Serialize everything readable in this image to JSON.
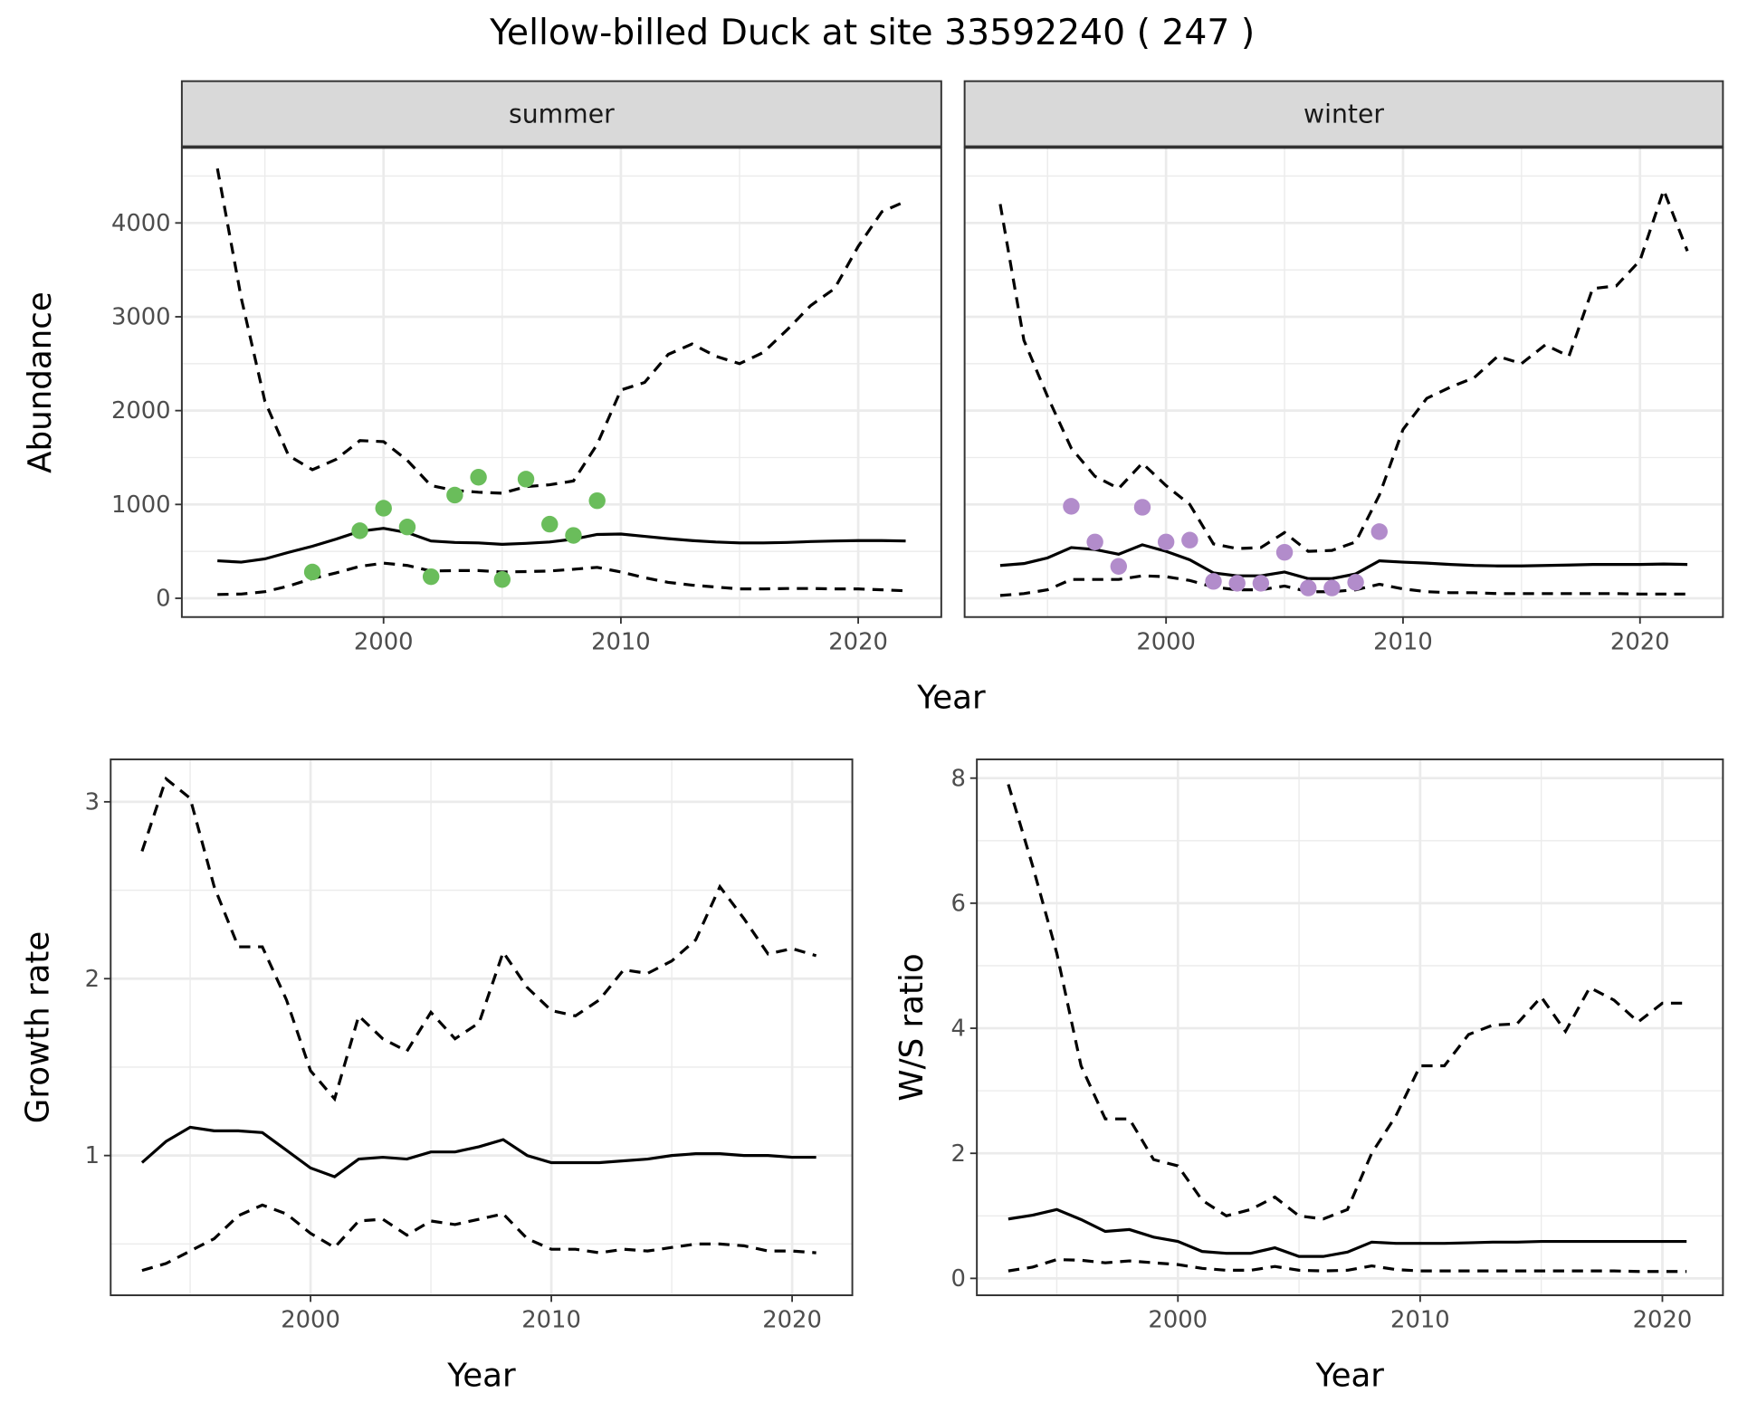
{
  "title": "Yellow-billed Duck at site 33592240 ( 247 )",
  "colors": {
    "summer_points": "#6abd5b",
    "winter_points": "#b28ccb",
    "strip": "#d9d9d9"
  },
  "chart_data": [
    {
      "id": "summer",
      "type": "line",
      "facet": "summer",
      "xlabel": "Year",
      "ylabel": "Abundance",
      "xlim": [
        1991.5,
        2023.5
      ],
      "ylim": [
        -200,
        4800
      ],
      "xticks": [
        2000,
        2010,
        2020
      ],
      "yticks": [
        0,
        1000,
        2000,
        3000,
        4000
      ],
      "grid": true,
      "x": [
        1993,
        1994,
        1995,
        1996,
        1997,
        1998,
        1999,
        2000,
        2001,
        2002,
        2003,
        2004,
        2005,
        2006,
        2007,
        2008,
        2009,
        2010,
        2011,
        2012,
        2013,
        2014,
        2015,
        2016,
        2017,
        2018,
        2019,
        2020,
        2021,
        2022
      ],
      "series": [
        {
          "name": "mean",
          "style": "solid",
          "values": [
            400,
            385,
            420,
            490,
            555,
            630,
            715,
            745,
            700,
            610,
            595,
            590,
            575,
            585,
            600,
            630,
            680,
            685,
            660,
            635,
            615,
            600,
            590,
            590,
            595,
            605,
            610,
            615,
            615,
            610
          ]
        },
        {
          "name": "upper",
          "style": "dashed",
          "values": [
            4580,
            3200,
            2100,
            1520,
            1370,
            1480,
            1680,
            1670,
            1470,
            1200,
            1150,
            1130,
            1120,
            1190,
            1210,
            1250,
            1640,
            2220,
            2300,
            2600,
            2710,
            2580,
            2500,
            2620,
            2860,
            3120,
            3300,
            3750,
            4120,
            4230
          ]
        },
        {
          "name": "lower",
          "style": "dashed",
          "values": [
            40,
            45,
            70,
            130,
            210,
            270,
            340,
            375,
            350,
            290,
            295,
            295,
            280,
            285,
            290,
            310,
            330,
            280,
            220,
            170,
            140,
            120,
            100,
            100,
            105,
            105,
            100,
            100,
            90,
            80
          ]
        }
      ],
      "points": {
        "x": [
          1997,
          1999,
          2000,
          2001,
          2002,
          2003,
          2004,
          2005,
          2006,
          2007,
          2008,
          2009
        ],
        "y": [
          280,
          720,
          960,
          760,
          230,
          1100,
          1290,
          200,
          1270,
          790,
          670,
          1040
        ]
      }
    },
    {
      "id": "winter",
      "type": "line",
      "facet": "winter",
      "xlabel": "Year",
      "ylabel": "",
      "xlim": [
        1991.5,
        2023.5
      ],
      "ylim": [
        -200,
        4800
      ],
      "xticks": [
        2000,
        2010,
        2020
      ],
      "yticks": [
        0,
        1000,
        2000,
        3000,
        4000
      ],
      "grid": true,
      "x": [
        1993,
        1994,
        1995,
        1996,
        1997,
        1998,
        1999,
        2000,
        2001,
        2002,
        2003,
        2004,
        2005,
        2006,
        2007,
        2008,
        2009,
        2010,
        2011,
        2012,
        2013,
        2014,
        2015,
        2016,
        2017,
        2018,
        2019,
        2020,
        2021,
        2022
      ],
      "series": [
        {
          "name": "mean",
          "style": "solid",
          "values": [
            350,
            370,
            430,
            540,
            520,
            470,
            570,
            500,
            410,
            270,
            240,
            240,
            280,
            210,
            210,
            260,
            400,
            385,
            375,
            360,
            350,
            345,
            345,
            350,
            355,
            360,
            360,
            360,
            365,
            360
          ]
        },
        {
          "name": "upper",
          "style": "dashed",
          "values": [
            4200,
            2750,
            2150,
            1600,
            1300,
            1170,
            1440,
            1200,
            1000,
            580,
            530,
            540,
            700,
            500,
            510,
            600,
            1100,
            1800,
            2130,
            2250,
            2350,
            2580,
            2500,
            2700,
            2580,
            3300,
            3330,
            3600,
            4350,
            3700
          ]
        },
        {
          "name": "lower",
          "style": "dashed",
          "values": [
            30,
            50,
            90,
            200,
            200,
            200,
            240,
            230,
            190,
            120,
            90,
            90,
            130,
            70,
            70,
            90,
            150,
            100,
            70,
            60,
            60,
            50,
            50,
            50,
            50,
            50,
            50,
            45,
            45,
            45
          ]
        }
      ],
      "points": {
        "x": [
          1996,
          1997,
          1998,
          1999,
          2000,
          2001,
          2002,
          2003,
          2004,
          2005,
          2006,
          2007,
          2008,
          2009
        ],
        "y": [
          980,
          600,
          340,
          970,
          600,
          620,
          180,
          160,
          160,
          490,
          110,
          110,
          170,
          710
        ]
      }
    },
    {
      "id": "growth",
      "type": "line",
      "xlabel": "Year",
      "ylabel": "Growth rate",
      "xlim": [
        1991.7,
        2022.5
      ],
      "ylim": [
        0.21,
        3.24
      ],
      "xticks": [
        2000,
        2010,
        2020
      ],
      "yticks": [
        1,
        2,
        3
      ],
      "grid": true,
      "x": [
        1993,
        1994,
        1995,
        1996,
        1997,
        1998,
        1999,
        2000,
        2001,
        2002,
        2003,
        2004,
        2005,
        2006,
        2007,
        2008,
        2009,
        2010,
        2011,
        2012,
        2013,
        2014,
        2015,
        2016,
        2017,
        2018,
        2019,
        2020,
        2021
      ],
      "series": [
        {
          "name": "mean",
          "style": "solid",
          "values": [
            0.96,
            1.08,
            1.16,
            1.14,
            1.14,
            1.13,
            1.03,
            0.93,
            0.88,
            0.98,
            0.99,
            0.98,
            1.02,
            1.02,
            1.05,
            1.09,
            1.0,
            0.96,
            0.96,
            0.96,
            0.97,
            0.98,
            1.0,
            1.01,
            1.01,
            1.0,
            1.0,
            0.99,
            0.99
          ]
        },
        {
          "name": "upper",
          "style": "dashed",
          "values": [
            2.72,
            3.13,
            3.02,
            2.52,
            2.18,
            2.18,
            1.88,
            1.48,
            1.32,
            1.79,
            1.66,
            1.59,
            1.81,
            1.66,
            1.75,
            2.15,
            1.95,
            1.82,
            1.79,
            1.88,
            2.05,
            2.03,
            2.1,
            2.22,
            2.52,
            2.34,
            2.14,
            2.17,
            2.13
          ]
        },
        {
          "name": "lower",
          "style": "dashed",
          "values": [
            0.35,
            0.39,
            0.46,
            0.53,
            0.66,
            0.72,
            0.67,
            0.56,
            0.48,
            0.63,
            0.64,
            0.55,
            0.63,
            0.61,
            0.64,
            0.67,
            0.53,
            0.47,
            0.47,
            0.45,
            0.47,
            0.46,
            0.48,
            0.5,
            0.5,
            0.49,
            0.46,
            0.46,
            0.45
          ]
        }
      ]
    },
    {
      "id": "ws",
      "type": "line",
      "xlabel": "Year",
      "ylabel": "W/S ratio",
      "xlim": [
        1991.7,
        2022.5
      ],
      "ylim": [
        -0.27,
        8.3
      ],
      "xticks": [
        2000,
        2010,
        2020
      ],
      "yticks": [
        0,
        2,
        4,
        6,
        8
      ],
      "grid": true,
      "x": [
        1993,
        1994,
        1995,
        1996,
        1997,
        1998,
        1999,
        2000,
        2001,
        2002,
        2003,
        2004,
        2005,
        2006,
        2007,
        2008,
        2009,
        2010,
        2011,
        2012,
        2013,
        2014,
        2015,
        2016,
        2017,
        2018,
        2019,
        2020,
        2021
      ],
      "series": [
        {
          "name": "mean",
          "style": "solid",
          "values": [
            0.95,
            1.01,
            1.1,
            0.94,
            0.75,
            0.78,
            0.66,
            0.59,
            0.43,
            0.4,
            0.4,
            0.49,
            0.35,
            0.35,
            0.42,
            0.58,
            0.56,
            0.56,
            0.56,
            0.57,
            0.58,
            0.58,
            0.59,
            0.59,
            0.59,
            0.59,
            0.59,
            0.59,
            0.59
          ]
        },
        {
          "name": "upper",
          "style": "dashed",
          "values": [
            7.9,
            6.6,
            5.2,
            3.4,
            2.55,
            2.55,
            1.9,
            1.8,
            1.25,
            1.0,
            1.1,
            1.3,
            1.0,
            0.95,
            1.1,
            2.0,
            2.6,
            3.4,
            3.4,
            3.9,
            4.05,
            4.07,
            4.5,
            3.95,
            4.65,
            4.45,
            4.1,
            4.4,
            4.4
          ]
        },
        {
          "name": "lower",
          "style": "dashed",
          "values": [
            0.12,
            0.18,
            0.3,
            0.29,
            0.25,
            0.28,
            0.25,
            0.22,
            0.16,
            0.13,
            0.13,
            0.19,
            0.13,
            0.12,
            0.13,
            0.2,
            0.14,
            0.12,
            0.12,
            0.12,
            0.12,
            0.12,
            0.12,
            0.12,
            0.12,
            0.12,
            0.11,
            0.11,
            0.11
          ]
        }
      ]
    }
  ]
}
